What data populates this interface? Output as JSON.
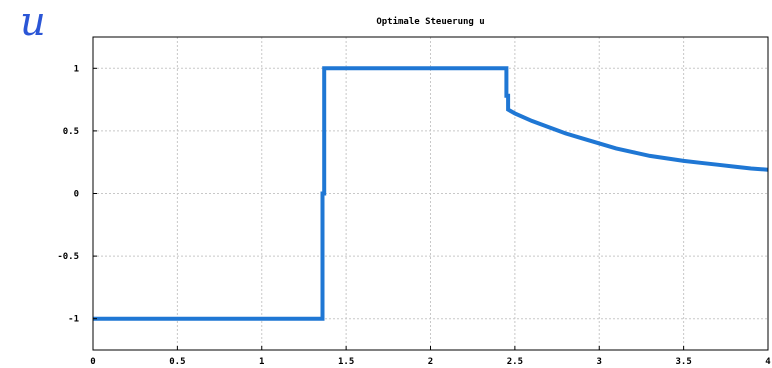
{
  "corner_symbol": "u",
  "chart_data": {
    "type": "line",
    "title": "Optimale Steuerung u",
    "xlabel": "",
    "ylabel": "",
    "xlim": [
      0,
      4
    ],
    "ylim": [
      -1.25,
      1.25
    ],
    "x_ticks": [
      0,
      0.5,
      1,
      1.5,
      2,
      2.5,
      3,
      3.5,
      4
    ],
    "x_tick_labels": [
      "0",
      "0.5",
      "1",
      "1.5",
      "2",
      "2.5",
      "3",
      "3.5",
      "4"
    ],
    "y_ticks": [
      -1,
      -0.5,
      0,
      0.5,
      1
    ],
    "y_tick_labels": [
      "-1",
      "-0.5",
      "0",
      "0.5",
      "1"
    ],
    "grid": true,
    "series": [
      {
        "color": "#1f77d4",
        "x": [
          0,
          1.36,
          1.36,
          1.37,
          1.37,
          2.45,
          2.45,
          2.46,
          2.46,
          2.5,
          2.6,
          2.7,
          2.8,
          2.9,
          3.0,
          3.1,
          3.2,
          3.3,
          3.4,
          3.5,
          3.6,
          3.7,
          3.8,
          3.9,
          4.0
        ],
        "y": [
          -1,
          -1,
          0,
          0,
          1,
          1,
          0.78,
          0.78,
          0.67,
          0.64,
          0.58,
          0.53,
          0.48,
          0.44,
          0.4,
          0.36,
          0.33,
          0.3,
          0.28,
          0.26,
          0.245,
          0.23,
          0.215,
          0.2,
          0.19
        ]
      }
    ]
  }
}
